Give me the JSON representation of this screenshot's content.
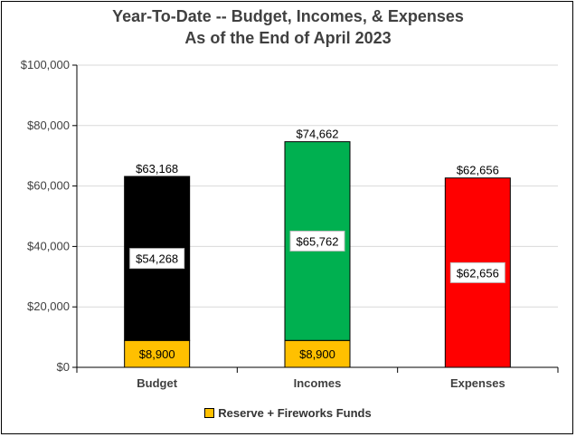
{
  "chart_data": {
    "type": "bar",
    "stacked": true,
    "title_lines": [
      "Year-To-Date -- Budget, Incomes, & Expenses",
      "As of the End of April 2023"
    ],
    "categories": [
      "Budget",
      "Incomes",
      "Expenses"
    ],
    "series": [
      {
        "name": "Reserve + Fireworks Funds",
        "values": [
          8900,
          8900,
          0
        ],
        "labels": [
          "$8,900",
          "$8,900",
          ""
        ],
        "colors": [
          "#ffc000",
          "#ffc000",
          "#ffc000"
        ],
        "in_legend": true
      },
      {
        "values": [
          54268,
          65762,
          62656
        ],
        "labels": [
          "$54,268",
          "$65,762",
          "$62,656"
        ],
        "colors": [
          "#000000",
          "#00b050",
          "#ff0000"
        ],
        "in_legend": false
      }
    ],
    "totals": [
      63168,
      74662,
      62656
    ],
    "total_labels": [
      "$63,168",
      "$74,662",
      "$62,656"
    ],
    "y_ticks": [
      0,
      20000,
      40000,
      60000,
      80000,
      100000
    ],
    "y_tick_labels": [
      "$0",
      "$20,000",
      "$40,000",
      "$60,000",
      "$80,000",
      "$100,000"
    ],
    "ylim": [
      0,
      100000
    ],
    "grid": true,
    "legend_position": "bottom"
  }
}
